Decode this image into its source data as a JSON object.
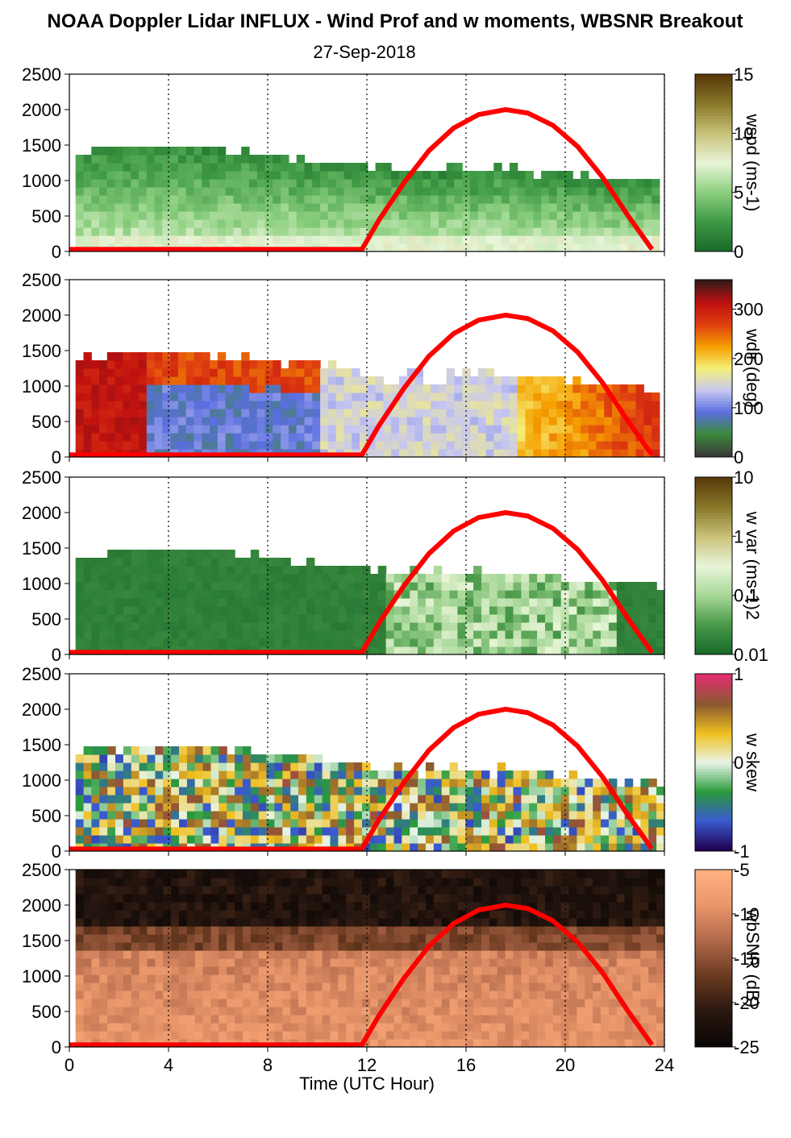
{
  "figure": {
    "title": "NOAA Doppler Lidar INFLUX - Wind Prof and w moments, WBSNR Breakout",
    "date": "27-Sep-2018",
    "xlabel": "Time (UTC Hour)",
    "x_ticks": [
      "0",
      "4",
      "8",
      "12",
      "16",
      "20",
      "24"
    ]
  },
  "chart_data": [
    {
      "type": "heatmap",
      "name": "wspd",
      "colorbar_label": "wspd (ms-1)",
      "colorbar_ticks": [
        "0",
        "5",
        "10",
        "15"
      ],
      "colorbar_range": [
        0,
        15
      ],
      "colors": [
        "#1a6b2a",
        "#3f9a45",
        "#8ccf7f",
        "#e8f5d8",
        "#c9c27a",
        "#8a7a2a",
        "#5a3a0a"
      ],
      "ylim": [
        0,
        2500
      ],
      "y_ticks": [
        "0",
        "500",
        "1000",
        "1500",
        "2000",
        "2500"
      ],
      "xlim": [
        0,
        24
      ],
      "cloud_top_m": [
        1400,
        1450,
        1500,
        1450,
        1350,
        1300,
        1250,
        1300,
        1200,
        1150,
        1250,
        1200,
        1100,
        1050,
        950
      ],
      "data_end_hour": 23.8
    },
    {
      "type": "heatmap",
      "name": "wdir",
      "colorbar_label": "wdir (deg)",
      "colorbar_ticks": [
        "0",
        "100",
        "200",
        "300"
      ],
      "colorbar_range": [
        0,
        360
      ],
      "colors": [
        "#3a3a3a",
        "#3c8a3c",
        "#5a6ee0",
        "#c8c8f0",
        "#f5f07a",
        "#f5a000",
        "#e04010",
        "#c01010",
        "#3a1a1a"
      ],
      "ylim": [
        0,
        2500
      ],
      "y_ticks": [
        "0",
        "500",
        "1000",
        "1500",
        "2000",
        "2500"
      ],
      "xlim": [
        0,
        24
      ],
      "data_end_hour": 23.8
    },
    {
      "type": "heatmap",
      "name": "w var",
      "colorbar_label": "w var (ms-1)2",
      "colorbar_ticks": [
        "0.01",
        "0.1",
        "1",
        "10"
      ],
      "colorbar_range": [
        0.01,
        10
      ],
      "colorbar_scale": "log",
      "colors": [
        "#1a6b2a",
        "#4a9a4a",
        "#a8d898",
        "#e8f5d8",
        "#c9c27a",
        "#8a7a2a",
        "#5a3a0a"
      ],
      "ylim": [
        0,
        2500
      ],
      "y_ticks": [
        "0",
        "500",
        "1000",
        "1500",
        "2000",
        "2500"
      ],
      "xlim": [
        0,
        24
      ],
      "data_end_hour": 24
    },
    {
      "type": "heatmap",
      "name": "w skew",
      "colorbar_label": "w skew",
      "colorbar_ticks": [
        "-1",
        "0",
        "1"
      ],
      "colorbar_range": [
        -1,
        1
      ],
      "colors": [
        "#200050",
        "#3a5ad0",
        "#2a9a3a",
        "#e8f5e8",
        "#f0c020",
        "#8a5a30",
        "#e03070"
      ],
      "ylim": [
        0,
        2500
      ],
      "y_ticks": [
        "0",
        "500",
        "1000",
        "1500",
        "2000",
        "2500"
      ],
      "xlim": [
        0,
        24
      ],
      "data_end_hour": 24
    },
    {
      "type": "heatmap",
      "name": "wbSNR",
      "colorbar_label": "wbSNR (dB)",
      "colorbar_ticks": [
        "-25",
        "-20",
        "-15",
        "-10",
        "-5"
      ],
      "colorbar_range": [
        -25,
        -5
      ],
      "colors": [
        "#0a0605",
        "#2a1810",
        "#6a3a20",
        "#b0684a",
        "#e8956a",
        "#ffb080"
      ],
      "ylim": [
        0,
        2500
      ],
      "y_ticks": [
        "0",
        "500",
        "1000",
        "1500",
        "2000",
        "2500"
      ],
      "xlim": [
        0,
        24
      ],
      "data_end_hour": 24
    }
  ],
  "solar_curve": {
    "color": "#ff0000",
    "x": [
      0,
      11.8,
      12.5,
      13.5,
      14.5,
      15.5,
      16.5,
      17.6,
      18.5,
      19.5,
      20.5,
      21.5,
      22.5,
      23.5
    ],
    "y": [
      30,
      30,
      450,
      970,
      1420,
      1740,
      1930,
      2000,
      1950,
      1780,
      1480,
      1050,
      520,
      30
    ]
  }
}
